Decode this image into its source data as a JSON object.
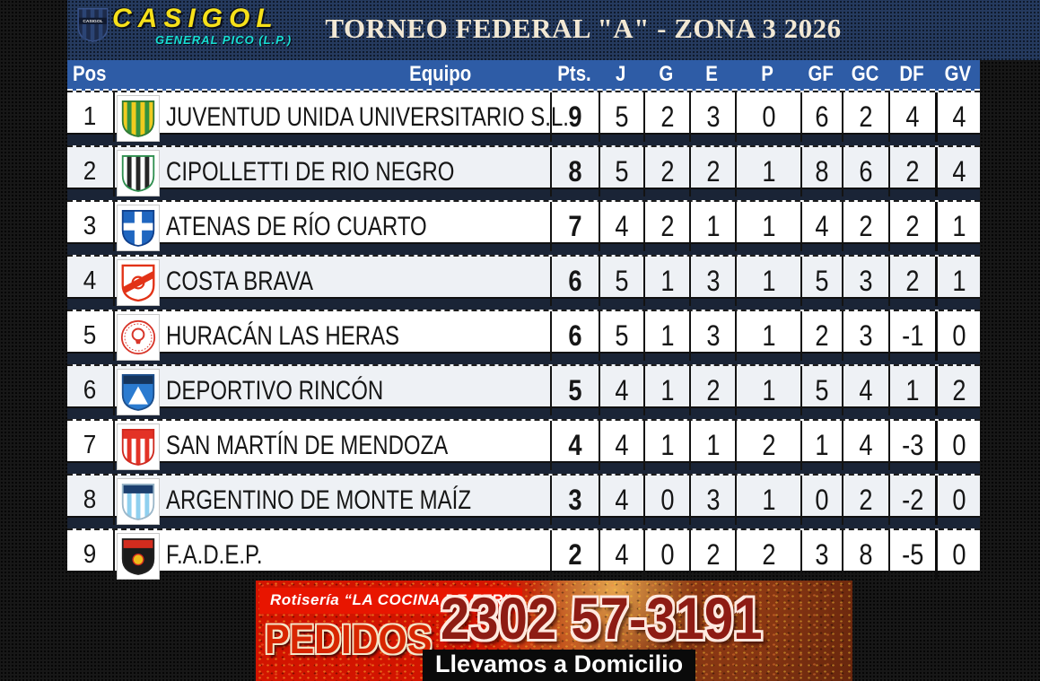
{
  "brand": {
    "wordmark": "CASIGOL",
    "tagline": "GENERAL PICO (L.P.)",
    "shield_label": "CASIGOL",
    "wordmark_color": "#f6e01a",
    "tagline_color": "#17ddd2"
  },
  "chart_data": {
    "type": "table",
    "title": "TORNEO FEDERAL \"A\" - ZONA 3  2026",
    "columns": [
      "Pos",
      "Equipo",
      "Pts.",
      "J",
      "G",
      "E",
      "P",
      "GF",
      "GC",
      "DF",
      "GV"
    ],
    "header_bg": "#2e5ca6",
    "row_alt_bg": "#eef1f5",
    "rows": [
      {
        "pos": "1",
        "team": "JUVENTUD UNIDA UNIVERSITARIO S.L.",
        "pts": "9",
        "j": "5",
        "g": "2",
        "e": "3",
        "p": "0",
        "gf": "6",
        "gc": "2",
        "df": "4",
        "gv": "4",
        "logo": {
          "name": "juventud-unida-crest-icon",
          "style": "stripes",
          "colors": [
            "#f0cb1f",
            "#33913e",
            "#2f7a33"
          ]
        }
      },
      {
        "pos": "2",
        "team": "CIPOLLETTI DE RIO NEGRO",
        "pts": "8",
        "j": "5",
        "g": "2",
        "e": "2",
        "p": "1",
        "gf": "8",
        "gc": "6",
        "df": "2",
        "gv": "4",
        "logo": {
          "name": "cipolletti-crest-icon",
          "style": "stripes",
          "colors": [
            "#ffffff",
            "#262626",
            "#2f8f4f"
          ]
        }
      },
      {
        "pos": "3",
        "team": "ATENAS DE RÍO CUARTO",
        "pts": "7",
        "j": "4",
        "g": "2",
        "e": "1",
        "p": "1",
        "gf": "4",
        "gc": "2",
        "df": "2",
        "gv": "1",
        "logo": {
          "name": "atenas-crest-icon",
          "style": "cross",
          "colors": [
            "#1f66c0",
            "#10408c"
          ]
        }
      },
      {
        "pos": "4",
        "team": "COSTA BRAVA",
        "pts": "6",
        "j": "5",
        "g": "1",
        "e": "3",
        "p": "1",
        "gf": "5",
        "gc": "3",
        "df": "2",
        "gv": "1",
        "logo": {
          "name": "costa-brava-crest-icon",
          "style": "diag",
          "colors": [
            "#e23317"
          ]
        }
      },
      {
        "pos": "5",
        "team": "HURACÁN LAS HERAS",
        "pts": "6",
        "j": "5",
        "g": "1",
        "e": "3",
        "p": "1",
        "gf": "2",
        "gc": "3",
        "df": "-1",
        "gv": "0",
        "logo": {
          "name": "huracan-las-heras-crest-icon",
          "style": "circle",
          "colors": [
            "#d8362a"
          ]
        }
      },
      {
        "pos": "6",
        "team": "DEPORTIVO RINCÓN",
        "pts": "5",
        "j": "4",
        "g": "1",
        "e": "2",
        "p": "1",
        "gf": "5",
        "gc": "4",
        "df": "1",
        "gv": "2",
        "logo": {
          "name": "deportivo-rincon-crest-icon",
          "style": "mount",
          "colors": [
            "#2b7bd0",
            "#16355c",
            "#1d4f8c"
          ]
        }
      },
      {
        "pos": "7",
        "team": "SAN MARTÍN DE MENDOZA",
        "pts": "4",
        "j": "4",
        "g": "1",
        "e": "1",
        "p": "2",
        "gf": "1",
        "gc": "4",
        "df": "-3",
        "gv": "0",
        "logo": {
          "name": "san-martin-mendoza-crest-icon",
          "style": "stripes-chief",
          "colors": [
            "#ffffff",
            "#e33226",
            "#cf2a1f",
            "#e33226"
          ]
        }
      },
      {
        "pos": "8",
        "team": "ARGENTINO DE MONTE MAÍZ",
        "pts": "3",
        "j": "4",
        "g": "0",
        "e": "3",
        "p": "1",
        "gf": "0",
        "gc": "2",
        "df": "-2",
        "gv": "0",
        "logo": {
          "name": "argentino-monte-maiz-crest-icon",
          "style": "stripes-chief",
          "colors": [
            "#ffffff",
            "#8fd0ef",
            "#9bb7c9",
            "#1c3f6e"
          ]
        }
      },
      {
        "pos": "9",
        "team": "F.A.D.E.P.",
        "pts": "2",
        "j": "4",
        "g": "0",
        "e": "2",
        "p": "2",
        "gf": "3",
        "gc": "8",
        "df": "-5",
        "gv": "0",
        "logo": {
          "name": "fadep-crest-icon",
          "style": "fadep",
          "colors": [
            "#1b1b1b",
            "#d22c1e",
            "#eebd1a"
          ]
        }
      }
    ]
  },
  "ad": {
    "headline": "Rotisería “LA COCINA DE FER”",
    "pedidos_label": "PEDIDOS",
    "phone": "2302 57-3191",
    "footer": "Llevamos a Domicilio",
    "red": "#d21400",
    "phone_color": "#8e1c14"
  }
}
